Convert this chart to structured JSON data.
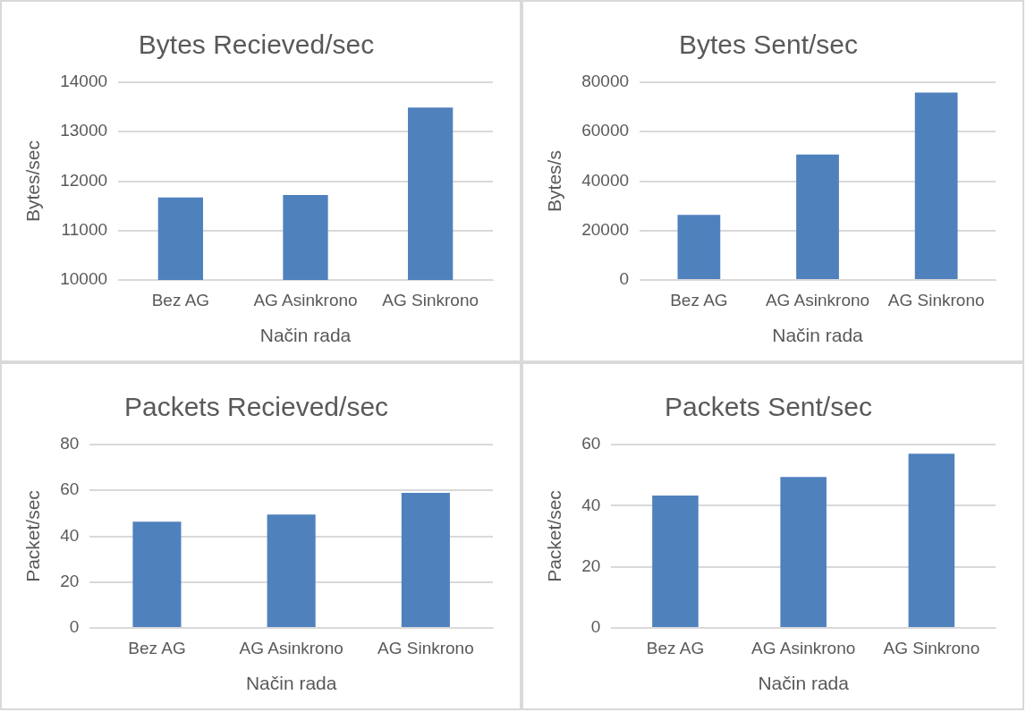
{
  "chart_data": [
    {
      "type": "bar",
      "title": "Bytes Recieved/sec",
      "xlabel": "Način rada",
      "ylabel": "Bytes/sec",
      "categories": [
        "Bez AG",
        "AG Asinkrono",
        "AG Sinkrono"
      ],
      "values": [
        11670,
        11720,
        13490
      ],
      "color": "#4f81bd",
      "ylim": [
        10000,
        14000
      ],
      "yticks": [
        10000,
        11000,
        12000,
        13000,
        14000
      ],
      "grid": "y"
    },
    {
      "type": "bar",
      "title": "Bytes Sent/sec",
      "xlabel": "Način rada",
      "ylabel": "Bytes/s",
      "categories": [
        "Bez AG",
        "AG Asinkrono",
        "AG Sinkrono"
      ],
      "values": [
        26300,
        50800,
        75800
      ],
      "color": "#4f81bd",
      "ylim": [
        0,
        80000
      ],
      "yticks": [
        0,
        20000,
        40000,
        60000,
        80000
      ],
      "grid": "y"
    },
    {
      "type": "bar",
      "title": "Packets Recieved/sec",
      "xlabel": "Način rada",
      "ylabel": "Packet/sec",
      "categories": [
        "Bez AG",
        "AG Asinkrono",
        "AG Sinkrono"
      ],
      "values": [
        46.3,
        49.5,
        58.9
      ],
      "color": "#4f81bd",
      "ylim": [
        0,
        80
      ],
      "yticks": [
        0,
        20,
        40,
        60,
        80
      ],
      "grid": "y"
    },
    {
      "type": "bar",
      "title": "Packets Sent/sec",
      "xlabel": "Način rada",
      "ylabel": "Packet/sec",
      "categories": [
        "Bez AG",
        "AG Asinkrono",
        "AG Sinkrono"
      ],
      "values": [
        43.3,
        49.4,
        57.0
      ],
      "color": "#4f81bd",
      "ylim": [
        0,
        60
      ],
      "yticks": [
        0,
        20,
        40,
        60
      ],
      "grid": "y"
    }
  ]
}
